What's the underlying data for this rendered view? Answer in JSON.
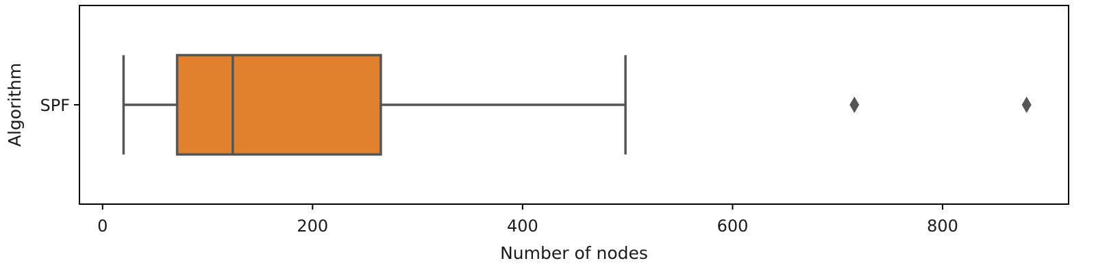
{
  "chart_data": {
    "type": "boxplot",
    "orientation": "horizontal",
    "title": "",
    "xlabel": "Number of nodes",
    "ylabel": "Algorithm",
    "xlim": [
      -22,
      920
    ],
    "xticks": [
      0,
      200,
      400,
      600,
      800
    ],
    "grid": false,
    "categories": [
      "SPF"
    ],
    "series": [
      {
        "category": "SPF",
        "whisker_low": 20,
        "q1": 71,
        "median": 124,
        "q3": 265,
        "whisker_high": 498,
        "outliers": [
          716,
          880
        ],
        "box_color": "#e1812c",
        "line_color": "#555555"
      }
    ]
  }
}
